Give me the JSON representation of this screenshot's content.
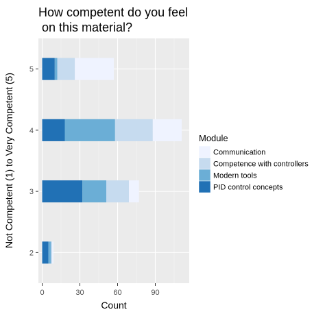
{
  "chart_data": {
    "type": "bar",
    "orientation": "horizontal",
    "stacked": true,
    "title_lines": [
      "How competent do you feel",
      " on this material?"
    ],
    "xlabel": "Count",
    "ylabel": "Not Competent (1) to Very Competent (5)",
    "categories": [
      "2",
      "3",
      "4",
      "5"
    ],
    "xlim": [
      -3,
      117
    ],
    "xticks": [
      0,
      30,
      60,
      90
    ],
    "grid": true,
    "legend_position": "right",
    "legend_title": "Module",
    "series": [
      {
        "name": "PID control concepts",
        "color": "#2171b5",
        "values": [
          5,
          32,
          18,
          10
        ]
      },
      {
        "name": "Modern tools",
        "color": "#6baed6",
        "values": [
          2,
          19,
          40,
          2
        ]
      },
      {
        "name": "Competence with controllers",
        "color": "#c6dbef",
        "values": [
          1,
          18,
          30,
          14
        ]
      },
      {
        "name": "Communication",
        "color": "#eff3ff",
        "values": [
          1,
          8,
          23,
          31
        ]
      }
    ],
    "legend_order": [
      "Communication",
      "Competence with controllers",
      "Modern tools",
      "PID control concepts"
    ]
  }
}
